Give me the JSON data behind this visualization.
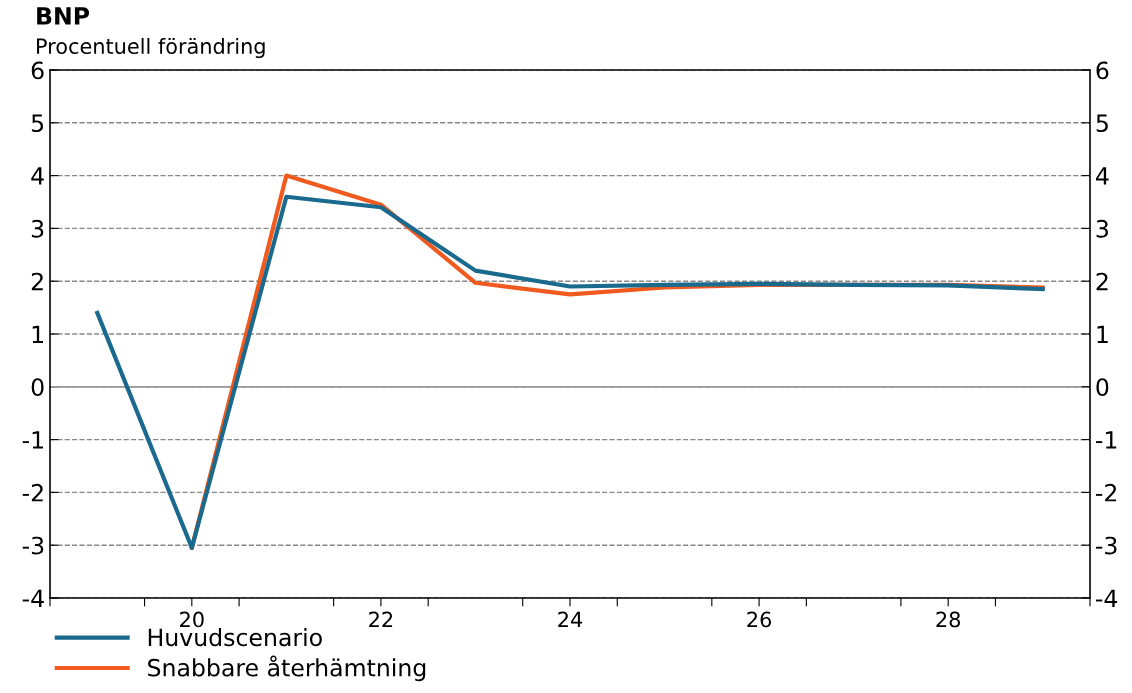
{
  "chart_data": {
    "type": "line",
    "title": "BNP",
    "subtitle": "Procentuell förändring",
    "x": [
      19,
      20,
      21,
      22,
      23,
      24,
      25,
      26,
      27,
      28,
      29
    ],
    "series": [
      {
        "name": "Huvudscenario",
        "color": "#1a6a8e",
        "values": [
          1.4,
          -3.05,
          3.6,
          3.4,
          2.2,
          1.9,
          1.93,
          1.95,
          1.93,
          1.92,
          1.85
        ]
      },
      {
        "name": "Snabbare återhämtning",
        "color": "#f05a1e",
        "values": [
          null,
          -3.05,
          4.0,
          3.45,
          1.97,
          1.75,
          1.88,
          1.93,
          1.93,
          1.93,
          1.88
        ]
      }
    ],
    "xlim": [
      18.5,
      29.5
    ],
    "xticks": [
      {
        "value": 18.5,
        "label": null
      },
      {
        "value": 19.5,
        "label": null
      },
      20,
      {
        "value": 20.5,
        "label": null
      },
      {
        "value": 21.5,
        "label": null
      },
      22,
      {
        "value": 22.5,
        "label": null
      },
      {
        "value": 23.5,
        "label": null
      },
      24,
      {
        "value": 24.5,
        "label": null
      },
      {
        "value": 25.5,
        "label": null
      },
      26,
      {
        "value": 26.5,
        "label": null
      },
      {
        "value": 27.5,
        "label": null
      },
      28,
      {
        "value": 28.5,
        "label": null
      },
      {
        "value": 29.5,
        "label": null
      }
    ],
    "ylim": [
      -4,
      6
    ],
    "yticks": [
      -4,
      -3,
      -2,
      -1,
      0,
      1,
      2,
      3,
      4,
      5,
      6
    ],
    "y2lim": [
      -4,
      6
    ],
    "y2ticks": [
      -4,
      -3,
      -2,
      -1,
      0,
      1,
      2,
      3,
      4,
      5,
      6
    ],
    "ref_lines": [
      {
        "axis": "y",
        "value": 0,
        "color": "#999999",
        "line_style": "solid"
      }
    ],
    "grid": "y",
    "legend": "bottom left",
    "marker": "none",
    "line_style": "solid"
  }
}
